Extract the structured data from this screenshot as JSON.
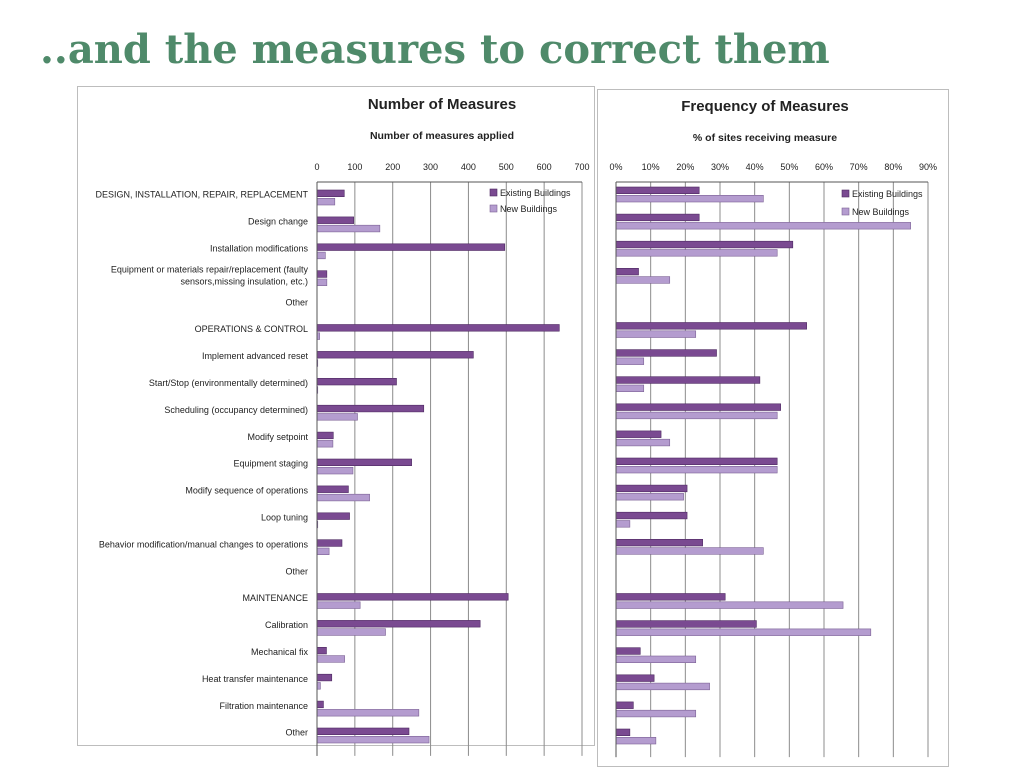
{
  "slide": {
    "title": "..and the measures to correct them"
  },
  "colors": {
    "existing": "#7a4a91",
    "existing_stroke": "#4e2a62",
    "new": "#b49ccf",
    "new_stroke": "#7c6295",
    "grid": "#8c8c8c",
    "axis": "#555555"
  },
  "chart_data": [
    {
      "type": "bar",
      "orientation": "horizontal",
      "title": "Number of Measures",
      "subtitle": "Number of measures applied",
      "xlim": [
        0,
        700
      ],
      "xticks": [
        0,
        100,
        200,
        300,
        400,
        500,
        600,
        700
      ],
      "tick_labels": [
        "0",
        "100",
        "200",
        "300",
        "400",
        "500",
        "600",
        "700"
      ],
      "grid": true,
      "legend_position": "top-right",
      "categories": [
        "DESIGN, INSTALLATION, REPAIR, REPLACEMENT",
        "Design change",
        "Installation modifications",
        "Equipment or materials repair/replacement (faulty\nsensors,missing insulation, etc.)",
        "Other",
        "OPERATIONS & CONTROL",
        "Implement advanced reset",
        "Start/Stop (environmentally determined)",
        "Scheduling (occupancy determined)",
        "Modify setpoint",
        "Equipment staging",
        "Modify sequence of operations",
        "Loop tuning",
        "Behavior modification/manual changes to operations",
        "Other",
        "MAINTENANCE",
        "Calibration",
        "Mechanical fix",
        "Heat transfer maintenance",
        "Filtration maintenance",
        "Other"
      ],
      "series": [
        {
          "name": "Existing Buildings",
          "values": [
            72,
            97,
            496,
            26,
            0,
            640,
            413,
            210,
            282,
            43,
            250,
            83,
            86,
            66,
            0,
            505,
            431,
            25,
            39,
            17,
            243
          ]
        },
        {
          "name": "New Buildings",
          "values": [
            47,
            166,
            22,
            26,
            0,
            7,
            2,
            2,
            107,
            42,
            95,
            139,
            2,
            32,
            0,
            114,
            181,
            73,
            9,
            269,
            296
          ]
        }
      ]
    },
    {
      "type": "bar",
      "orientation": "horizontal",
      "title": "Frequency of Measures",
      "subtitle": "% of sites receiving measure",
      "xlim": [
        0,
        90
      ],
      "xticks": [
        0,
        10,
        20,
        30,
        40,
        50,
        60,
        70,
        80,
        90
      ],
      "tick_labels": [
        "0%",
        "10%",
        "20%",
        "30%",
        "40%",
        "50%",
        "60%",
        "70%",
        "80%",
        "90%"
      ],
      "grid": true,
      "legend_position": "top-right",
      "categories": [
        "DESIGN, INSTALLATION, REPAIR, REPLACEMENT",
        "Design change",
        "Installation modifications",
        "Equipment or materials repair/replacement (faulty sensors,missing insulation, etc.)",
        "Other",
        "OPERATIONS & CONTROL",
        "Implement advanced reset",
        "Start/Stop (environmentally determined)",
        "Scheduling (occupancy determined)",
        "Modify setpoint",
        "Equipment staging",
        "Modify sequence of operations",
        "Loop tuning",
        "Behavior modification/manual changes to operations",
        "Other",
        "MAINTENANCE",
        "Calibration",
        "Mechanical fix",
        "Heat transfer maintenance",
        "Filtration maintenance",
        "Other"
      ],
      "series": [
        {
          "name": "Existing Buildings",
          "values": [
            24,
            24,
            51,
            6.5,
            0,
            55,
            29,
            41.5,
            47.5,
            13,
            46.5,
            20.5,
            20.5,
            25,
            0,
            31.5,
            40.5,
            7,
            11,
            5,
            4
          ]
        },
        {
          "name": "New Buildings",
          "values": [
            42.5,
            85,
            46.5,
            15.5,
            0,
            23,
            8,
            8,
            46.5,
            15.5,
            46.5,
            19.5,
            4,
            42.5,
            0,
            65.5,
            73.5,
            23,
            27,
            23,
            11.5
          ]
        }
      ]
    }
  ]
}
